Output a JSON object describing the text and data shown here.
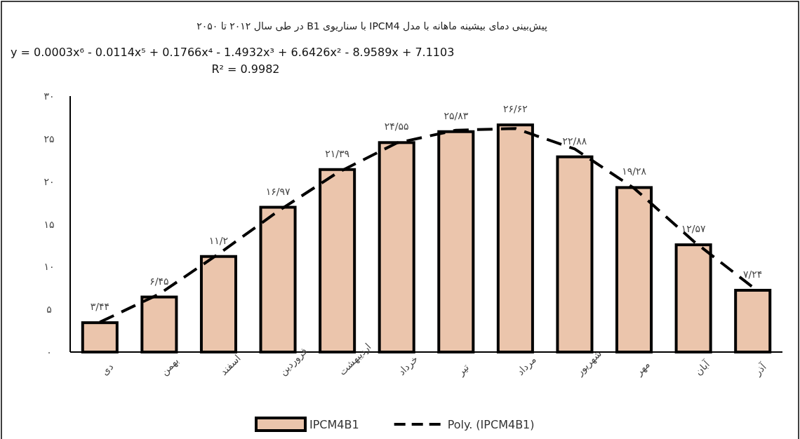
{
  "chart_data": {
    "type": "bar",
    "title": "پیش‌بینی دمای بیشینه ماهانه با مدل IPCM4 با سناریوی B1 در طی سال ۲۰۱۲ تا ۲۰۵۰",
    "annotations": [
      "y = 0.0003x⁶ - 0.0114x⁵ + 0.1766x⁴ - 1.4932x³ + 6.6426x² - 8.9589x + 7.1103",
      "R² = 0.9982"
    ],
    "categories": [
      "دی",
      "بهمن",
      "اسفند",
      "فروردین",
      "اردیبهشت",
      "خرداد",
      "تیر",
      "مرداد",
      "شهریور",
      "مهر",
      "آبان",
      "آذر"
    ],
    "series": [
      {
        "name": "IPCM4B1",
        "color": "#c55a11",
        "values": [
          3.44,
          6.45,
          11.2,
          16.97,
          21.39,
          24.55,
          25.83,
          26.62,
          22.88,
          19.28,
          12.57,
          7.24
        ],
        "value_labels": [
          "۳/۴۴",
          "۶/۴۵",
          "۱۱/۲",
          "۱۶/۹۷",
          "۲۱/۳۹",
          "۲۴/۵۵",
          "۲۵/۸۳",
          "۲۶/۶۲",
          "۲۲/۸۸",
          "۱۹/۲۸",
          "۱۲/۵۷",
          "۷/۲۴"
        ]
      },
      {
        "name": "Poly. (IPCM4B1)",
        "type": "line",
        "color": "#000000",
        "line_style": "dashed",
        "values": [
          3.5,
          6.8,
          11.5,
          16.5,
          21.0,
          24.5,
          26.0,
          26.2,
          23.8,
          19.2,
          13.0,
          7.6
        ]
      }
    ],
    "ylim": [
      0,
      30
    ],
    "yticks": [
      {
        "value": 0,
        "label": "۰"
      },
      {
        "value": 5,
        "label": "۵"
      },
      {
        "value": 10,
        "label": "۱۰"
      },
      {
        "value": 15,
        "label": "۱۵"
      },
      {
        "value": 20,
        "label": "۲۰"
      },
      {
        "value": 25,
        "label": "۲۵"
      },
      {
        "value": 30,
        "label": "۳۰"
      }
    ],
    "grid": false,
    "legend": "bottom"
  }
}
